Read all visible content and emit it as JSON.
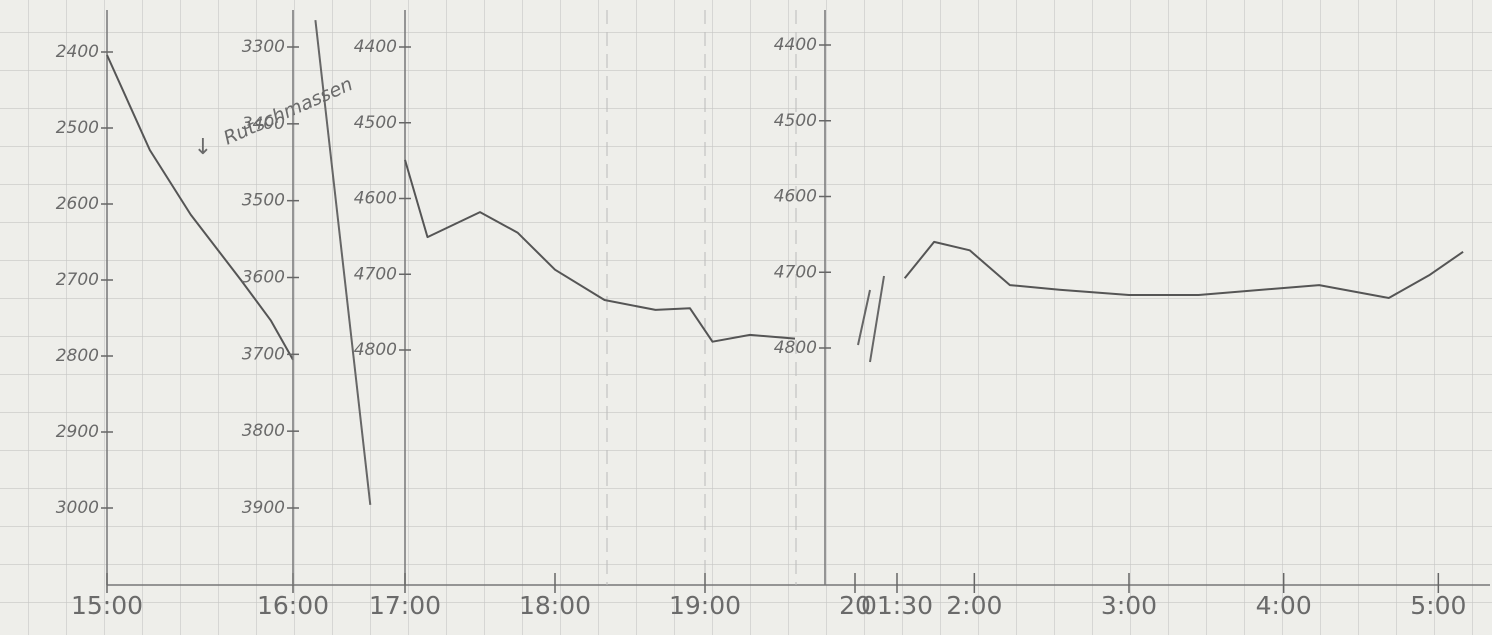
{
  "chart_data": [
    {
      "type": "line",
      "color": "#555555",
      "xlim": [
        15,
        16
      ],
      "xticks": [
        {
          "value": 15,
          "label": "15:00"
        },
        {
          "value": 16,
          "label": "16:00"
        }
      ],
      "ylim": [
        3000,
        2400
      ],
      "yticks": [
        2400,
        2500,
        2600,
        2700,
        2800,
        2900,
        3000
      ],
      "x": [
        15.0,
        15.23,
        15.45,
        15.72,
        15.88,
        16.0
      ],
      "values": [
        2404,
        2529,
        2614,
        2700,
        2753,
        2805
      ],
      "annotation": "Rutschmassen"
    },
    {
      "type": "line",
      "color": "#666666",
      "xlim": [
        16,
        17
      ],
      "ylim": [
        3900,
        3300
      ],
      "yticks": [
        3300,
        3400,
        3500,
        3600,
        3700,
        3800,
        3900
      ],
      "x": [
        16.2,
        16.69
      ],
      "values": [
        3265,
        3896
      ]
    },
    {
      "type": "line",
      "color": "#555555",
      "xlim": [
        17,
        20
      ],
      "xticks": [
        {
          "value": 17,
          "label": "17:00"
        },
        {
          "value": 18,
          "label": "18:00"
        },
        {
          "value": 19,
          "label": "19:00"
        },
        20
      ],
      "ylim": [
        4800,
        4400
      ],
      "yticks": [
        4400,
        4500,
        4600,
        4700,
        4800
      ],
      "x": [
        17.0,
        17.15,
        17.5,
        17.75,
        18.0,
        18.33,
        18.67,
        18.9,
        19.05,
        19.3,
        19.6
      ],
      "values": [
        4549,
        4651,
        4618,
        4645,
        4694,
        4734,
        4747,
        4745,
        4789,
        4780,
        4785
      ]
    },
    {
      "type": "line",
      "color": "#555555",
      "xlim": [
        1.5,
        5.25
      ],
      "xticks": [
        {
          "value": 1.5,
          "label": "01:30"
        },
        {
          "value": 2,
          "label": "2:00"
        },
        {
          "value": 3,
          "label": "3:00"
        },
        {
          "value": 4,
          "label": "4:00"
        },
        {
          "value": 5,
          "label": "5:00"
        }
      ],
      "ylim": [
        4800,
        4400
      ],
      "yticks": [
        4400,
        4500,
        4600,
        4700,
        4800
      ],
      "x": [
        1.55,
        1.74,
        1.97,
        2.23,
        2.55,
        3.0,
        3.45,
        4.23,
        4.68,
        4.94,
        5.16
      ],
      "values": [
        4708,
        4660,
        4671,
        4717,
        4723,
        4730,
        4730,
        4717,
        4734,
        4704,
        4673
      ]
    }
  ]
}
